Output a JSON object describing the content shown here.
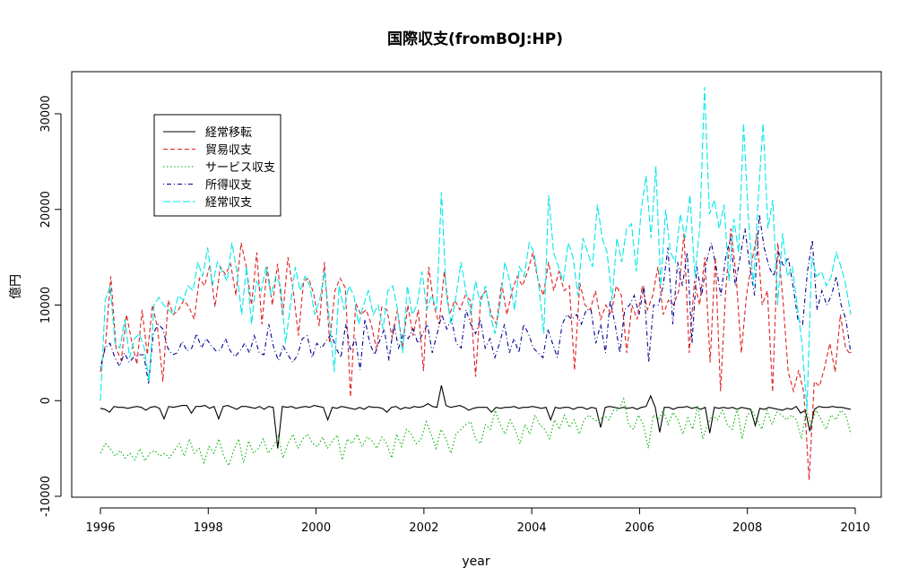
{
  "chart_data": {
    "type": "line",
    "title": "国際収支(fromBOJ:HP)",
    "xlabel": "year",
    "ylabel": "億円",
    "xlim": [
      1996,
      2010
    ],
    "ylim": [
      -10000,
      33000
    ],
    "x_ticks": [
      "1996",
      "1998",
      "2000",
      "2002",
      "2004",
      "2006",
      "2008",
      "2010"
    ],
    "y_ticks": [
      "-10000",
      "0",
      "10000",
      "20000",
      "30000"
    ],
    "legend_position": "top-left",
    "grid": false,
    "series": [
      {
        "name": "経常移転",
        "color": "#000000",
        "dash": "solid",
        "values": [
          -800,
          -900,
          -1200,
          -600,
          -700,
          -700,
          -800,
          -700,
          -600,
          -700,
          -1000,
          -700,
          -600,
          -800,
          -1900,
          -600,
          -700,
          -600,
          -500,
          -500,
          -1300,
          -600,
          -600,
          -500,
          -800,
          -600,
          -1900,
          -600,
          -500,
          -700,
          -900,
          -600,
          -600,
          -700,
          -800,
          -600,
          -900,
          -600,
          -700,
          -5000,
          -600,
          -700,
          -600,
          -800,
          -700,
          -600,
          -700,
          -500,
          -600,
          -700,
          -2000,
          -700,
          -800,
          -600,
          -700,
          -800,
          -900,
          -700,
          -900,
          -600,
          -700,
          -700,
          -800,
          -1200,
          -700,
          -600,
          -900,
          -700,
          -800,
          -600,
          -700,
          -600,
          -300,
          -600,
          -700,
          1600,
          -500,
          -700,
          -600,
          -500,
          -700,
          -1000,
          -800,
          -700,
          -700,
          -700,
          -1200,
          -700,
          -800,
          -700,
          -700,
          -600,
          -800,
          -700,
          -700,
          -600,
          -700,
          -800,
          -700,
          -2000,
          -700,
          -800,
          -700,
          -700,
          -900,
          -700,
          -700,
          -900,
          -700,
          -800,
          -2800,
          -700,
          -600,
          -700,
          -800,
          -700,
          -800,
          -700,
          -900,
          -700,
          -600,
          500,
          -700,
          -3300,
          -700,
          -700,
          -900,
          -700,
          -700,
          -600,
          -800,
          -700,
          -900,
          -700,
          -3400,
          -700,
          -800,
          -700,
          -800,
          -700,
          -900,
          -700,
          -800,
          -900,
          -2600,
          -800,
          -900,
          -700,
          -800,
          -900,
          -1000,
          -800,
          -900,
          -600,
          -1300,
          -1000,
          -3200,
          -900,
          -600,
          -700,
          -700,
          -600,
          -700,
          -700,
          -800,
          -900
        ]
      },
      {
        "name": "貿易収支",
        "color": "#df2020",
        "dash": "dashed",
        "values": [
          3000,
          6000,
          13000,
          5500,
          4200,
          9000,
          6200,
          3800,
          9500,
          4800,
          10000,
          7500,
          2000,
          10500,
          9000,
          9500,
          10500,
          9800,
          8500,
          12800,
          12000,
          14200,
          9800,
          14000,
          13200,
          14300,
          11000,
          16500,
          14000,
          10000,
          15500,
          8000,
          14000,
          10000,
          14300,
          8800,
          15000,
          11500,
          6800,
          12500,
          12800,
          11000,
          7800,
          14500,
          6000,
          11500,
          12800,
          11800,
          400,
          10200,
          9000,
          9500,
          8000,
          5300,
          9800,
          9500,
          6500,
          9500,
          5500,
          10000,
          6800,
          9500,
          3100,
          14000,
          10000,
          8000,
          13500,
          9000,
          10500,
          9500,
          11000,
          10500,
          2500,
          10800,
          11500,
          9000,
          8000,
          12300,
          9000,
          11500,
          13000,
          12000,
          13500,
          15500,
          12500,
          11000,
          14500,
          11500,
          13500,
          11500,
          12000,
          3200,
          12300,
          10000,
          9500,
          11500,
          8500,
          10000,
          9000,
          12000,
          11000,
          5000,
          10000,
          8500,
          12000,
          9500,
          11000,
          14000,
          9000,
          10500,
          10000,
          11500,
          17500,
          5000,
          12500,
          10000,
          15000,
          4000,
          15000,
          1000,
          11500,
          18000,
          13000,
          5000,
          11000,
          14500,
          17500,
          10000,
          11500,
          900,
          16500,
          10500,
          3000,
          1000,
          3200,
          800,
          -8300,
          2000,
          1500,
          3500,
          6000,
          3000,
          9000,
          5500,
          4800
        ]
      },
      {
        "name": "サービス収支",
        "color": "#00b000",
        "dash": "dotted",
        "values": [
          -5500,
          -4500,
          -5000,
          -5800,
          -5200,
          -6000,
          -5500,
          -6200,
          -5000,
          -6300,
          -5500,
          -5200,
          -5800,
          -5500,
          -6000,
          -5200,
          -4500,
          -5800,
          -4000,
          -5500,
          -5000,
          -6500,
          -4800,
          -5500,
          -4000,
          -5800,
          -6800,
          -5200,
          -4000,
          -6500,
          -4200,
          -5500,
          -5000,
          -4000,
          -5500,
          -4800,
          -3700,
          -6000,
          -4500,
          -3500,
          -5000,
          -4000,
          -3500,
          -4500,
          -4800,
          -3800,
          -5000,
          -4200,
          -3600,
          -6200,
          -4000,
          -4500,
          -3500,
          -4800,
          -3800,
          -4200,
          -5000,
          -3800,
          -4500,
          -6000,
          -3500,
          -4800,
          -3000,
          -3500,
          -4500,
          -4000,
          -2200,
          -3500,
          -5000,
          -3000,
          -4000,
          -5500,
          -3500,
          -3000,
          -2500,
          -2200,
          -4000,
          -4500,
          -2500,
          -3000,
          -1000,
          -2500,
          -3500,
          -2000,
          -3000,
          -4500,
          -2500,
          -3500,
          -1500,
          -2500,
          -3000,
          -4000,
          -2000,
          -3000,
          -1500,
          -2800,
          -2000,
          -3500,
          -2000,
          -1500,
          -2000,
          -2200,
          -1500,
          -2000,
          -1000,
          -1000,
          200,
          -2500,
          -3000,
          -1500,
          -2500,
          -5000,
          -1500,
          -2000,
          -1000,
          -2500,
          -1200,
          -2000,
          -3500,
          -1800,
          -3000,
          -500,
          -4000,
          -2500,
          -1500,
          -2000,
          -1000,
          -2500,
          -3000,
          -800,
          -4000,
          -1500,
          -1000,
          -2000,
          -3000,
          -1000,
          -2500,
          -1200,
          -1500,
          -2000,
          -1500,
          -2000,
          -4000,
          -1000,
          -2500,
          -1000,
          -2000,
          -3000,
          -1500,
          -2000,
          -1000,
          -1500,
          -3500
        ]
      },
      {
        "name": "所得収支",
        "color": "#000090",
        "dash": "dashdot",
        "values": [
          3500,
          5500,
          6000,
          4500,
          3600,
          5000,
          4000,
          4600,
          4800,
          4800,
          1800,
          7000,
          8000,
          7500,
          5500,
          4800,
          5000,
          6200,
          5200,
          5500,
          7000,
          5500,
          6500,
          5800,
          5200,
          5300,
          6500,
          5200,
          4600,
          5200,
          6000,
          5000,
          6800,
          5000,
          4800,
          8000,
          5600,
          4200,
          5700,
          4800,
          4000,
          4800,
          6500,
          6800,
          4500,
          6000,
          5500,
          6300,
          7000,
          5500,
          4500,
          8000,
          5200,
          6500,
          3200,
          8500,
          6000,
          4800,
          6200,
          7500,
          4200,
          8000,
          5500,
          7000,
          6500,
          7500,
          6000,
          7000,
          8000,
          5000,
          7000,
          9000,
          7500,
          8500,
          6000,
          5500,
          9500,
          8000,
          7000,
          8500,
          5500,
          6500,
          4500,
          6000,
          8000,
          5000,
          6500,
          5000,
          8000,
          7000,
          5500,
          5000,
          4500,
          7500,
          6000,
          4500,
          8000,
          9000,
          8500,
          9000,
          8000,
          9500,
          9500,
          6000,
          8000,
          5000,
          10500,
          8000,
          5000,
          9500,
          10000,
          11000,
          9000,
          12000,
          4000,
          10000,
          10000,
          12000,
          16000,
          8000,
          14500,
          12000,
          15500,
          6000,
          14000,
          11000,
          14500,
          16500,
          14000,
          11000,
          15000,
          17000,
          12000,
          15000,
          18000,
          14000,
          11000,
          19500,
          16000,
          14000,
          13000,
          15500,
          14000,
          15000,
          12000,
          8500,
          8000,
          13500,
          16800,
          9500,
          11500,
          10000,
          11000,
          13000,
          10000,
          8500,
          5000
        ]
      },
      {
        "name": "経常収支",
        "color": "#00e8e8",
        "dash": "longdash",
        "values": [
          0,
          10500,
          12000,
          6000,
          5500,
          8500,
          4500,
          6500,
          7000,
          5500,
          2000,
          10000,
          10800,
          10000,
          9500,
          9000,
          11000,
          10500,
          12000,
          11500,
          14500,
          13000,
          16000,
          12000,
          14500,
          13500,
          12500,
          16500,
          13500,
          9000,
          14000,
          8000,
          12500,
          11500,
          14000,
          11000,
          13000,
          12000,
          6000,
          10000,
          14000,
          11500,
          13000,
          12000,
          9000,
          10500,
          13500,
          8500,
          3000,
          12000,
          9500,
          12000,
          11000,
          8000,
          10000,
          11500,
          9000,
          10000,
          7500,
          11500,
          12000,
          9500,
          5000,
          12000,
          9000,
          10000,
          13500,
          9500,
          11000,
          9500,
          21800,
          11000,
          8000,
          11000,
          14500,
          11500,
          9000,
          12500,
          10000,
          12000,
          9000,
          7000,
          10000,
          14500,
          12500,
          9500,
          14000,
          13000,
          16500,
          15500,
          12000,
          7000,
          21500,
          15500,
          14000,
          12500,
          16500,
          15000,
          11000,
          17000,
          15500,
          14000,
          20500,
          17000,
          15500,
          10500,
          17000,
          14500,
          18000,
          18500,
          13500,
          20000,
          23500,
          17000,
          24500,
          12000,
          20000,
          15500,
          14500,
          19500,
          17000,
          21500,
          13000,
          18000,
          32800,
          19500,
          21000,
          18000,
          20500,
          12500,
          19000,
          15500,
          29000,
          19000,
          12000,
          21000,
          29000,
          18000,
          21000,
          10000,
          17500,
          13000,
          14000,
          10000,
          6000,
          -1000,
          15000,
          13000,
          13500,
          12000,
          13000,
          15500,
          14000,
          12000,
          9000
        ]
      }
    ]
  }
}
